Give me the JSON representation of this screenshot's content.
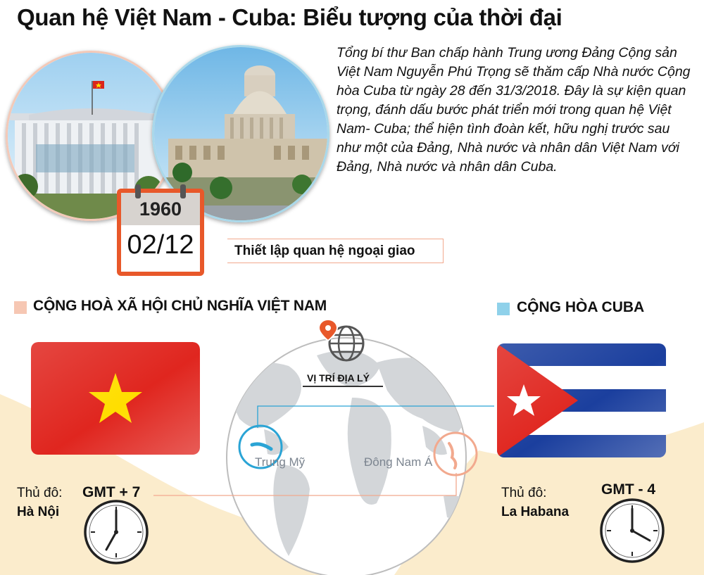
{
  "title": "Quan hệ Việt Nam - Cuba: Biểu tượng của thời đại",
  "intro": "Tổng bí thư Ban chấp hành Trung ương Đảng Cộng sản Việt Nam Nguyễn Phú Trọng sẽ thăm cấp Nhà nước Cộng hòa Cuba từ ngày 28 đến 31/3/2018. Đây là sự kiện quan trọng, đánh dấu bước phát triển mới trong quan hệ Việt Nam- Cuba; thể hiện tình đoàn kết, hữu nghị trước sau như một của Đảng, Nhà nước và nhân dân Việt Nam với Đảng, Nhà nước và nhân dân Cuba.",
  "calendar": {
    "year": "1960",
    "date": "02/12"
  },
  "event": "Thiết lập quan hệ ngoại giao",
  "vietnam": {
    "name": "CỘNG HOÀ XÃ HỘI CHỦ NGHĨA VIỆT NAM",
    "capital_label": "Thủ đô:",
    "capital": "Hà Nội",
    "gmt": "GMT + 7"
  },
  "cuba": {
    "name": "CỘNG HÒA CUBA",
    "capital_label": "Thủ đô:",
    "capital": "La Habana",
    "gmt": "GMT - 4"
  },
  "map": {
    "label": "VỊ TRÍ ĐỊA LÝ",
    "region_left": "Trung Mỹ",
    "region_right": "Đông Nam Á",
    "icon": "map-pin-globe-icon"
  },
  "colors": {
    "vn_red": "#e0261f",
    "vn_star": "#ffde00",
    "cuba_blue": "#1b3f9e",
    "cuba_red": "#e0261f",
    "accent_orange": "#e8582a",
    "accent_blue": "#2aa4d5",
    "wave": "#fbeccc"
  }
}
